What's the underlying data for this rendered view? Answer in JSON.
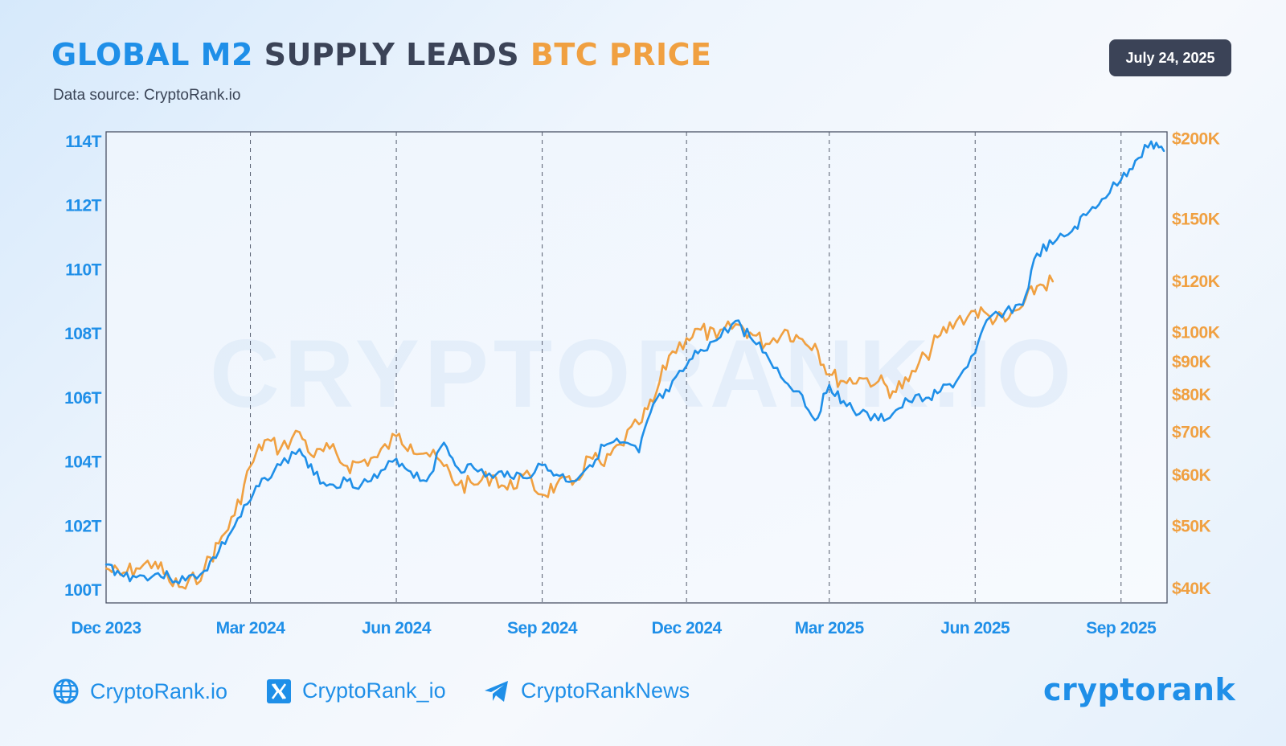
{
  "header": {
    "title_part1": "GLOBAL M2",
    "title_part2": " SUPPLY LEADS ",
    "title_part3": "BTC PRICE",
    "subtitle": "Data source: CryptoRank.io",
    "date": "July 24, 2025"
  },
  "watermark": "CRYPTORANK.IO",
  "colors": {
    "m2": "#1f8fe8",
    "btc": "#f0a041",
    "dark": "#3b4357"
  },
  "footer": {
    "website": "CryptoRank.io",
    "x_handle": "CryptoRank_io",
    "telegram": "CryptoRankNews",
    "logo": "cryptorank",
    "icons": [
      "globe-icon",
      "x-icon",
      "telegram-icon"
    ]
  },
  "chart_data": {
    "type": "line",
    "xlabel": "",
    "x_ticks": [
      "Dec 2023",
      "Mar 2024",
      "Jun 2024",
      "Sep 2024",
      "Dec 2024",
      "Mar 2025",
      "Jun 2025",
      "Sep 2025"
    ],
    "y_left": {
      "ticks": [
        "100T",
        "102T",
        "104T",
        "106T",
        "108T",
        "110T",
        "112T",
        "114T"
      ],
      "range": [
        99.6,
        114.3
      ]
    },
    "y_right": {
      "scale": "log",
      "ticks": [
        "$40K",
        "$50K",
        "$60K",
        "$70K",
        "$80K",
        "$90K",
        "$100K",
        "$120K",
        "$150K",
        "$200K"
      ],
      "range": [
        38,
        205
      ]
    },
    "grid": "vertical dashed at x ticks",
    "series": [
      {
        "axis": "left",
        "x": [
          "2023-12-01",
          "2023-12-10",
          "2023-12-20",
          "2024-01-01",
          "2024-01-10",
          "2024-01-20",
          "2024-02-01",
          "2024-02-10",
          "2024-02-20",
          "2024-03-01",
          "2024-03-10",
          "2024-03-20",
          "2024-04-01",
          "2024-04-10",
          "2024-04-20",
          "2024-05-01",
          "2024-05-10",
          "2024-05-20",
          "2024-06-01",
          "2024-06-10",
          "2024-06-20",
          "2024-07-01",
          "2024-07-10",
          "2024-07-20",
          "2024-08-01",
          "2024-08-10",
          "2024-08-20",
          "2024-09-01",
          "2024-09-10",
          "2024-09-20",
          "2024-10-01",
          "2024-10-10",
          "2024-10-20",
          "2024-11-01",
          "2024-11-10",
          "2024-11-20",
          "2024-12-01",
          "2024-12-10",
          "2024-12-20",
          "2025-01-01",
          "2025-01-10",
          "2025-01-20",
          "2025-02-01",
          "2025-02-10",
          "2025-02-20",
          "2025-03-01",
          "2025-03-10",
          "2025-03-20",
          "2025-04-01",
          "2025-04-10",
          "2025-04-20",
          "2025-05-01",
          "2025-05-10",
          "2025-05-20",
          "2025-06-01",
          "2025-06-10",
          "2025-06-20",
          "2025-07-01",
          "2025-07-10",
          "2025-07-20",
          "2025-08-01",
          "2025-08-10",
          "2025-08-20",
          "2025-09-01",
          "2025-09-10",
          "2025-09-20",
          "2025-09-28"
        ],
        "values": [
          100.8,
          100.5,
          100.4,
          100.5,
          100.4,
          100.3,
          100.6,
          101.2,
          102.0,
          102.8,
          103.5,
          103.9,
          104.4,
          103.6,
          103.3,
          103.4,
          103.3,
          103.5,
          104.1,
          103.7,
          103.4,
          104.6,
          103.8,
          103.8,
          103.5,
          103.7,
          103.5,
          103.9,
          103.6,
          103.4,
          103.9,
          104.5,
          104.6,
          104.3,
          105.8,
          106.2,
          107.0,
          107.5,
          107.8,
          108.4,
          107.9,
          107.4,
          106.5,
          106.2,
          105.3,
          106.4,
          105.9,
          105.5,
          105.3,
          105.5,
          105.9,
          106.0,
          106.2,
          106.5,
          107.4,
          108.5,
          108.7,
          108.9,
          110.5,
          110.8,
          111.2,
          111.7,
          112.2,
          112.8,
          113.4,
          114.0,
          113.7
        ]
      },
      {
        "axis": "right",
        "x": [
          "2023-12-01",
          "2023-12-10",
          "2023-12-20",
          "2024-01-01",
          "2024-01-10",
          "2024-01-20",
          "2024-02-01",
          "2024-02-10",
          "2024-02-20",
          "2024-03-01",
          "2024-03-10",
          "2024-03-20",
          "2024-04-01",
          "2024-04-10",
          "2024-04-20",
          "2024-05-01",
          "2024-05-10",
          "2024-05-20",
          "2024-06-01",
          "2024-06-10",
          "2024-06-20",
          "2024-07-01",
          "2024-07-10",
          "2024-07-20",
          "2024-08-01",
          "2024-08-10",
          "2024-08-20",
          "2024-09-01",
          "2024-09-10",
          "2024-09-20",
          "2024-10-01",
          "2024-10-10",
          "2024-10-20",
          "2024-11-01",
          "2024-11-10",
          "2024-11-20",
          "2024-12-01",
          "2024-12-10",
          "2024-12-20",
          "2025-01-01",
          "2025-01-10",
          "2025-01-20",
          "2025-02-01",
          "2025-02-10",
          "2025-02-20",
          "2025-03-01",
          "2025-03-10",
          "2025-03-20",
          "2025-04-01",
          "2025-04-10",
          "2025-04-20",
          "2025-05-01",
          "2025-05-10",
          "2025-05-20",
          "2025-06-01",
          "2025-06-10",
          "2025-06-20",
          "2025-07-01",
          "2025-07-10",
          "2025-07-20"
        ],
        "values": [
          43,
          42,
          43,
          44,
          41,
          40,
          43,
          47,
          52,
          62,
          68,
          66,
          70,
          64,
          66,
          62,
          63,
          64,
          69,
          67,
          65,
          62,
          58,
          58,
          60,
          57,
          60,
          56,
          58,
          58,
          64,
          62,
          67,
          72,
          78,
          92,
          98,
          101,
          98,
          103,
          100,
          96,
          101,
          98,
          96,
          86,
          84,
          85,
          84,
          81,
          84,
          92,
          99,
          104,
          108,
          106,
          104,
          110,
          118,
          120
        ]
      }
    ]
  }
}
